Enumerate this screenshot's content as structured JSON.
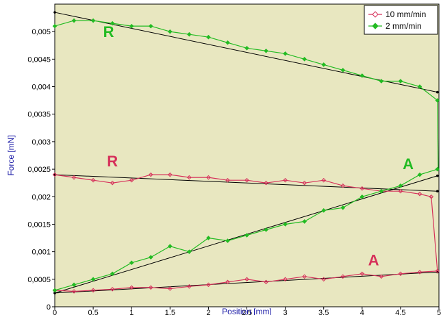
{
  "chart_data": {
    "type": "line",
    "xlabel": "Position [mm]",
    "ylabel": "Force [mN]",
    "xlim": [
      0,
      5
    ],
    "ylim": [
      0,
      0.0055
    ],
    "x_ticks": [
      0,
      0.5,
      1,
      1.5,
      2,
      2.5,
      3,
      3.5,
      4,
      4.5,
      5
    ],
    "x_tick_labels": [
      "0",
      "0,5",
      "1",
      "1,5",
      "2",
      "2,5",
      "3",
      "3,5",
      "4",
      "4,5",
      "5"
    ],
    "y_ticks": [
      0,
      0.0005,
      0.001,
      0.0015,
      0.002,
      0.0025,
      0.003,
      0.0035,
      0.004,
      0.0045,
      0.005
    ],
    "y_tick_labels": [
      "0",
      "0,0005",
      "0,001",
      "0,0015",
      "0,002",
      "0,0025",
      "0,003",
      "0,0035",
      "0,004",
      "0,0045",
      "0,005"
    ],
    "grid": false,
    "background": "#e8e7c0",
    "legend": {
      "position": "top-right",
      "entries": [
        {
          "label": "10 mm/min",
          "color": "#d6305a",
          "marker": "open-diamond"
        },
        {
          "label": "2 mm/min",
          "color": "#22bb22",
          "marker": "filled-diamond"
        }
      ]
    },
    "series": [
      {
        "name": "10 mm/min",
        "color": "#d6305a",
        "retract": {
          "x": [
            0,
            0.25,
            0.5,
            0.75,
            1.0,
            1.25,
            1.5,
            1.75,
            2.0,
            2.25,
            2.5,
            2.75,
            3.0,
            3.25,
            3.5,
            3.75,
            4.0,
            4.25,
            4.5,
            4.75,
            4.9
          ],
          "y": [
            0.0024,
            0.00235,
            0.0023,
            0.00225,
            0.0023,
            0.0024,
            0.0024,
            0.00235,
            0.00235,
            0.0023,
            0.0023,
            0.00225,
            0.0023,
            0.00225,
            0.0023,
            0.0022,
            0.00215,
            0.0021,
            0.0021,
            0.00205,
            0.002
          ]
        },
        "approach": {
          "x": [
            0,
            0.25,
            0.5,
            0.75,
            1.0,
            1.25,
            1.5,
            1.75,
            2.0,
            2.25,
            2.5,
            2.75,
            3.0,
            3.25,
            3.5,
            3.75,
            4.0,
            4.25,
            4.5,
            4.75,
            4.98
          ],
          "y": [
            0.0003,
            0.00028,
            0.0003,
            0.00032,
            0.00035,
            0.00035,
            0.00033,
            0.00037,
            0.0004,
            0.00045,
            0.0005,
            0.00045,
            0.0005,
            0.00055,
            0.0005,
            0.00055,
            0.0006,
            0.00055,
            0.0006,
            0.00063,
            0.00065
          ]
        },
        "transition": {
          "x": [
            4.9,
            4.98
          ],
          "y": [
            0.002,
            0.00065
          ]
        },
        "fit_retract": {
          "x": [
            0,
            4.98
          ],
          "y": [
            0.0024,
            0.0021
          ]
        },
        "fit_approach": {
          "x": [
            0,
            4.98
          ],
          "y": [
            0.00025,
            0.00063
          ]
        }
      },
      {
        "name": "2 mm/min",
        "color": "#22bb22",
        "retract": {
          "x": [
            0,
            0.25,
            0.5,
            0.75,
            1.0,
            1.25,
            1.5,
            1.75,
            2.0,
            2.25,
            2.5,
            2.75,
            3.0,
            3.25,
            3.5,
            3.75,
            4.0,
            4.25,
            4.5,
            4.75,
            4.98
          ],
          "y": [
            0.0051,
            0.0052,
            0.0052,
            0.00515,
            0.0051,
            0.0051,
            0.005,
            0.00495,
            0.0049,
            0.0048,
            0.0047,
            0.00465,
            0.0046,
            0.0045,
            0.0044,
            0.0043,
            0.0042,
            0.0041,
            0.0041,
            0.004,
            0.00375
          ]
        },
        "approach": {
          "x": [
            0,
            0.25,
            0.5,
            0.75,
            1.0,
            1.25,
            1.5,
            1.75,
            2.0,
            2.25,
            2.5,
            2.75,
            3.0,
            3.25,
            3.5,
            3.75,
            4.0,
            4.25,
            4.5,
            4.75,
            4.98
          ],
          "y": [
            0.0003,
            0.0004,
            0.0005,
            0.0006,
            0.0008,
            0.0009,
            0.0011,
            0.001,
            0.00125,
            0.0012,
            0.0013,
            0.0014,
            0.0015,
            0.00155,
            0.00175,
            0.0018,
            0.002,
            0.0021,
            0.0022,
            0.0024,
            0.0025
          ]
        },
        "transition": {
          "x": [
            4.98,
            4.99
          ],
          "y": [
            0.00375,
            0.0025
          ]
        },
        "fit_retract": {
          "x": [
            0,
            4.98
          ],
          "y": [
            0.00535,
            0.0039
          ]
        },
        "fit_approach": {
          "x": [
            0,
            4.98
          ],
          "y": [
            0.00025,
            0.00238
          ]
        }
      }
    ],
    "annotations": [
      {
        "text": "R",
        "x": 0.7,
        "y": 0.0049,
        "color": "#22bb22"
      },
      {
        "text": "R",
        "x": 0.75,
        "y": 0.00255,
        "color": "#d6305a"
      },
      {
        "text": "A",
        "x": 4.6,
        "y": 0.0025,
        "color": "#22bb22"
      },
      {
        "text": "A",
        "x": 4.15,
        "y": 0.00075,
        "color": "#d6305a"
      }
    ]
  }
}
